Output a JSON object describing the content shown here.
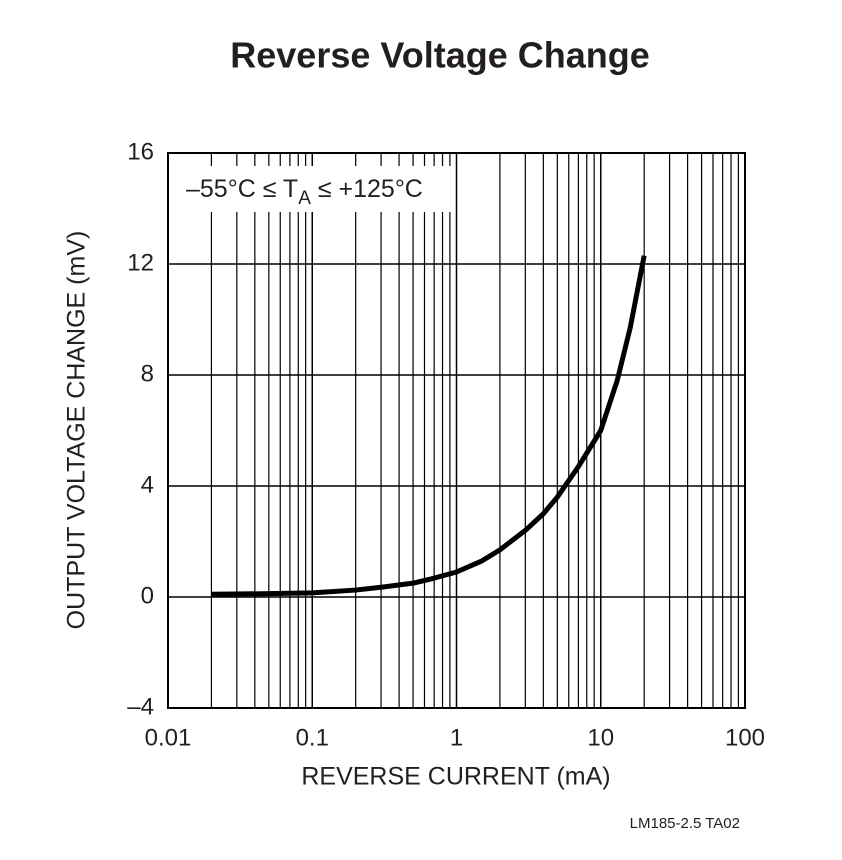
{
  "chart_data": {
    "type": "line",
    "title": "Reverse Voltage Change",
    "x_label": "REVERSE CURRENT (mA)",
    "y_label": "OUTPUT VOLTAGE CHANGE (mV)",
    "annotation": {
      "text": "–55°C ≤ T",
      "subscript": "A",
      "text_after": " ≤ +125°C"
    },
    "footnote": "LM185-2.5 TA02",
    "x_log": true,
    "grid": true,
    "minor_grid": true,
    "xlim": [
      0.01,
      100
    ],
    "xticks": [
      0.01,
      0.1,
      1,
      10,
      100
    ],
    "ylim": [
      -4,
      16
    ],
    "yticks": [
      {
        "value": -4,
        "label": "–4"
      },
      0,
      4,
      8,
      12,
      16
    ],
    "series": [
      {
        "color": "#000000",
        "x": [
          0.02,
          0.05,
          0.1,
          0.2,
          0.3,
          0.5,
          0.7,
          1,
          1.5,
          2,
          3,
          4,
          5,
          7,
          10,
          13,
          16,
          20
        ],
        "values": [
          0.1,
          0.12,
          0.15,
          0.25,
          0.35,
          0.5,
          0.68,
          0.9,
          1.3,
          1.7,
          2.4,
          3.0,
          3.6,
          4.7,
          6.0,
          7.8,
          9.7,
          12.3
        ]
      }
    ]
  }
}
